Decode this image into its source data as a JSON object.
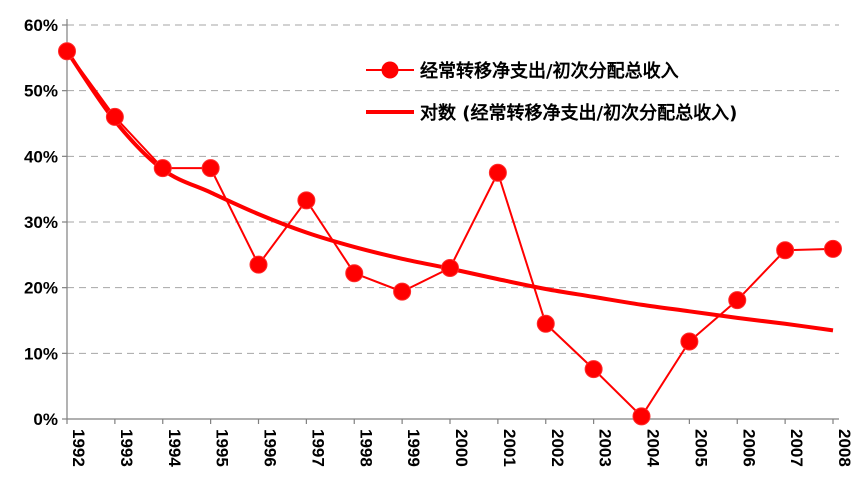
{
  "chart_data": {
    "type": "line",
    "title": "",
    "xlabel": "",
    "ylabel": "",
    "ylim": [
      0,
      0.6
    ],
    "y_ticks": [
      0,
      0.1,
      0.2,
      0.3,
      0.4,
      0.5,
      0.6
    ],
    "y_tick_labels": [
      "0%",
      "10%",
      "20%",
      "30%",
      "40%",
      "50%",
      "60%"
    ],
    "categories": [
      "1992",
      "1993",
      "1994",
      "1995",
      "1996",
      "1997",
      "1998",
      "1999",
      "2000",
      "2001",
      "2002",
      "2003",
      "2004",
      "2005",
      "2006",
      "2007",
      "2008"
    ],
    "grid": "horizontal dashed",
    "legend_position": "top-right",
    "series": [
      {
        "name": "经常转移净支出/初次分配总收入",
        "style": "line-with-markers",
        "color": "#ff0000",
        "values": [
          0.56,
          0.46,
          0.382,
          0.382,
          0.235,
          0.333,
          0.222,
          0.194,
          0.23,
          0.375,
          0.145,
          0.076,
          0.004,
          0.118,
          0.181,
          0.257,
          0.259
        ]
      },
      {
        "name": "对数 (经常转移净支出/初次分配总收入)",
        "style": "trendline",
        "color": "#ff0000",
        "values": [
          0.56,
          0.454,
          0.38,
          0.345,
          0.312,
          0.284,
          0.262,
          0.244,
          0.229,
          0.213,
          0.198,
          0.186,
          0.174,
          0.164,
          0.154,
          0.145,
          0.135
        ]
      }
    ]
  }
}
